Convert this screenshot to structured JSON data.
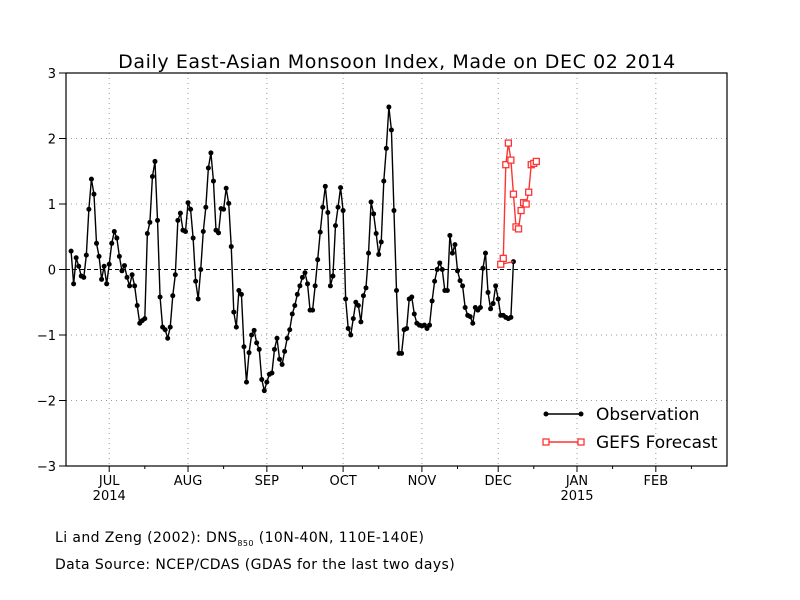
{
  "chart_data": {
    "type": "line",
    "title": "Daily East-Asian Monsoon Index, Made on DEC 02 2014",
    "xlabel": "",
    "ylabel": "",
    "ylim": [
      -3,
      3
    ],
    "xlim": [
      "2014-06-14",
      "2015-03-01"
    ],
    "y_ticks": [
      "3",
      "2",
      "1",
      "0",
      "-1",
      "-2",
      "-3"
    ],
    "x_ticks": [
      {
        "date": "2014-07-01",
        "label": "JUL",
        "sublabel": "2014"
      },
      {
        "date": "2014-08-01",
        "label": "AUG",
        "sublabel": ""
      },
      {
        "date": "2014-09-01",
        "label": "SEP",
        "sublabel": ""
      },
      {
        "date": "2014-10-01",
        "label": "OCT",
        "sublabel": ""
      },
      {
        "date": "2014-11-01",
        "label": "NOV",
        "sublabel": ""
      },
      {
        "date": "2014-12-01",
        "label": "DEC",
        "sublabel": ""
      },
      {
        "date": "2015-01-01",
        "label": "JAN",
        "sublabel": "2015"
      },
      {
        "date": "2015-02-01",
        "label": "FEB",
        "sublabel": ""
      }
    ],
    "grid": true,
    "zero_line": true,
    "legend_position": "bottom-right",
    "series": [
      {
        "name": "Observation",
        "color": "#000000",
        "marker": "filled-circle",
        "start_date": "2014-06-16",
        "values": [
          0.28,
          -0.22,
          0.18,
          0.05,
          -0.1,
          -0.12,
          0.22,
          0.92,
          1.38,
          1.15,
          0.4,
          0.2,
          -0.15,
          0.05,
          -0.22,
          0.08,
          0.4,
          0.58,
          0.48,
          0.2,
          -0.02,
          0.06,
          -0.12,
          -0.25,
          -0.08,
          -0.25,
          -0.55,
          -0.82,
          -0.78,
          -0.75,
          0.55,
          0.72,
          1.42,
          1.65,
          0.75,
          -0.42,
          -0.88,
          -0.92,
          -1.05,
          -0.88,
          -0.4,
          -0.08,
          0.75,
          0.86,
          0.6,
          0.58,
          1.02,
          0.92,
          0.48,
          -0.18,
          -0.45,
          0.0,
          0.58,
          0.95,
          1.55,
          1.78,
          1.35,
          0.6,
          0.56,
          0.93,
          0.92,
          1.24,
          1.01,
          0.35,
          -0.65,
          -0.88,
          -0.32,
          -0.38,
          -1.18,
          -1.72,
          -1.27,
          -1.0,
          -0.93,
          -1.12,
          -1.22,
          -1.68,
          -1.85,
          -1.72,
          -1.6,
          -1.58,
          -1.22,
          -1.05,
          -1.37,
          -1.45,
          -1.25,
          -1.05,
          -0.92,
          -0.68,
          -0.55,
          -0.38,
          -0.25,
          -0.12,
          -0.05,
          -0.22,
          -0.62,
          -0.62,
          -0.25,
          0.15,
          0.57,
          0.95,
          1.27,
          0.87,
          -0.25,
          -0.1,
          0.67,
          0.95,
          1.25,
          0.9,
          -0.45,
          -0.9,
          -1.0,
          -0.75,
          -0.5,
          -0.55,
          -0.8,
          -0.4,
          -0.28,
          0.25,
          1.03,
          0.85,
          0.55,
          0.23,
          0.42,
          1.35,
          1.85,
          2.48,
          2.13,
          0.9,
          -0.32,
          -1.28,
          -1.28,
          -0.92,
          -0.9,
          -0.45,
          -0.42,
          -0.68,
          -0.82,
          -0.85,
          -0.86,
          -0.85,
          -0.9,
          -0.85,
          -0.48,
          -0.18,
          0.0,
          0.1,
          0.0,
          -0.32,
          -0.32,
          0.52,
          0.25,
          0.38,
          -0.02,
          -0.17,
          -0.25,
          -0.58,
          -0.7,
          -0.72,
          -0.82,
          -0.58,
          -0.62,
          -0.58,
          0.02,
          0.25,
          -0.35,
          -0.6,
          -0.52,
          -0.25,
          -0.45,
          -0.7,
          -0.7,
          -0.73,
          -0.75,
          -0.73,
          0.12
        ]
      },
      {
        "name": "GEFS Forecast",
        "color": "#ff3333",
        "marker": "open-square",
        "start_date": "2014-12-02",
        "values": [
          0.08,
          0.17,
          1.6,
          1.93,
          1.67,
          1.15,
          0.65,
          0.62,
          0.9,
          1.02,
          1.0,
          1.18,
          1.6,
          1.62,
          1.65
        ]
      }
    ]
  },
  "footnotes": {
    "line1_prefix": "Li and Zeng (2002): DNS",
    "line1_sub": "850",
    "line1_suffix": " (10N-40N, 110E-140E)",
    "line2": "Data Source: NCEP/CDAS (GDAS for the last two days)"
  }
}
